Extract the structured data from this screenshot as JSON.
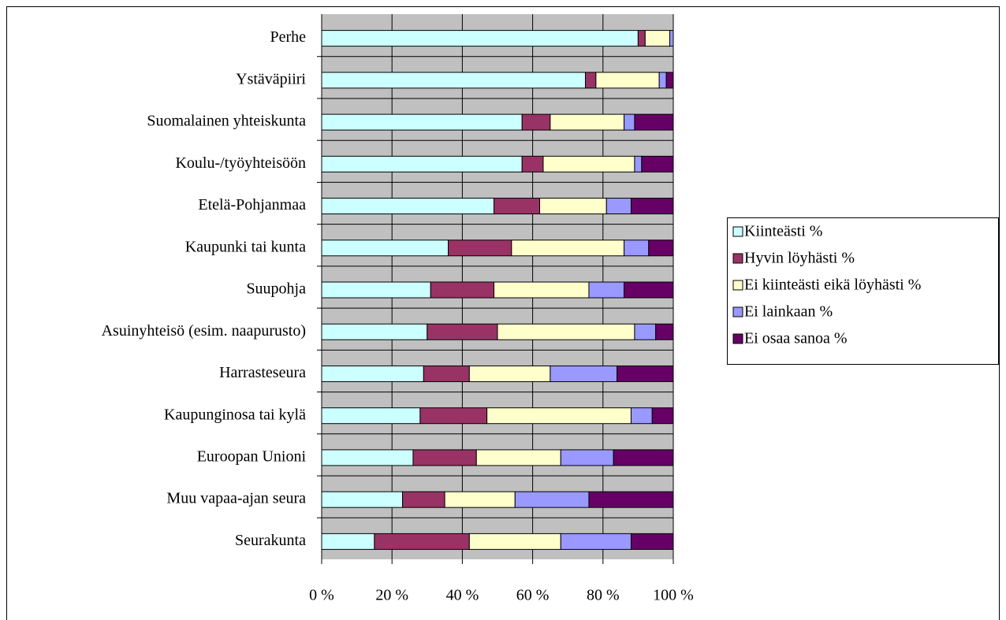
{
  "chart_data": {
    "type": "stacked-bar-horizontal",
    "categories": [
      "Perhe",
      "Ystäväpiiri",
      "Suomalainen yhteiskunta",
      "Koulu-/työyhteisöön",
      "Etelä-Pohjanmaa",
      "Kaupunki tai kunta",
      "Suupohja",
      "Asuinyhteisö (esim. naapurusto)",
      "Harrasteseura",
      "Kaupunginosa tai kylä",
      "Euroopan Unioni",
      "Muu vapaa-ajan seura",
      "Seurakunta"
    ],
    "series": [
      {
        "name": "Kiinteästi %",
        "color": "#ccffff",
        "values": [
          90,
          75,
          57,
          57,
          49,
          36,
          31,
          30,
          29,
          28,
          26,
          23,
          15
        ]
      },
      {
        "name": "Hyvin löyhästi %",
        "color": "#993366",
        "values": [
          2,
          3,
          8,
          6,
          13,
          18,
          18,
          20,
          13,
          19,
          18,
          12,
          27
        ]
      },
      {
        "name": "Ei kiinteästi eikä löyhästi %",
        "color": "#ffffcc",
        "values": [
          7,
          18,
          21,
          26,
          19,
          32,
          27,
          39,
          23,
          41,
          24,
          20,
          26
        ]
      },
      {
        "name": "Ei lainkaan %",
        "color": "#9999ff",
        "values": [
          1,
          2,
          3,
          2,
          7,
          7,
          10,
          6,
          19,
          6,
          15,
          21,
          20
        ]
      },
      {
        "name": "Ei osaa sanoa %",
        "color": "#660066",
        "values": [
          0,
          2,
          11,
          9,
          12,
          7,
          14,
          5,
          16,
          6,
          17,
          24,
          12
        ]
      }
    ],
    "xlim": [
      0,
      100
    ],
    "xticks": [
      {
        "value": 0,
        "label": "0 %"
      },
      {
        "value": 20,
        "label": "20 %"
      },
      {
        "value": 40,
        "label": "40 %"
      },
      {
        "value": 60,
        "label": "60 %"
      },
      {
        "value": 80,
        "label": "80 %"
      },
      {
        "value": 100,
        "label": "100 %"
      }
    ],
    "grid": true,
    "legend": "right"
  }
}
